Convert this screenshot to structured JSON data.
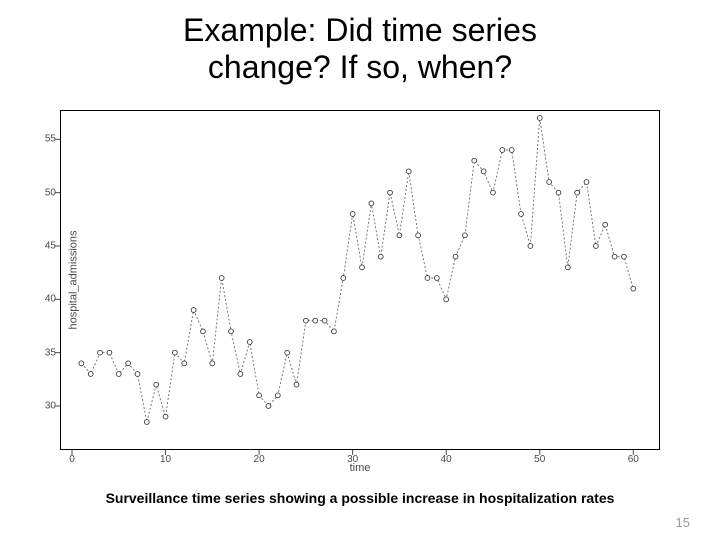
{
  "title_line1": "Example:  Did time series",
  "title_line2": "change? If so, when?",
  "caption": "Surveillance time series showing a possible increase in hospitalization rates",
  "page_number": "15",
  "chart": {
    "type": "line",
    "xlabel": "time",
    "ylabel": "hospital_admissions",
    "xlim": [
      0,
      62
    ],
    "ylim": [
      27,
      57
    ],
    "xticks": [
      0,
      10,
      20,
      30,
      40,
      50,
      60
    ],
    "yticks": [
      30,
      35,
      40,
      45,
      50,
      55
    ],
    "line_color": "#6a6a6a",
    "marker_stroke": "#3a3a3a",
    "marker_fill": "#ffffff",
    "marker_radius": 2.4,
    "line_width": 0.9,
    "line_dash": "2,2",
    "border_color": "#000000",
    "background_color": "#ffffff",
    "tick_color": "#4a4a4a",
    "x": [
      1,
      2,
      3,
      4,
      5,
      6,
      7,
      8,
      9,
      10,
      11,
      12,
      13,
      14,
      15,
      16,
      17,
      18,
      19,
      20,
      21,
      22,
      23,
      24,
      25,
      26,
      27,
      28,
      29,
      30,
      31,
      32,
      33,
      34,
      35,
      36,
      37,
      38,
      39,
      40,
      41,
      42,
      43,
      44,
      45,
      46,
      47,
      48,
      49,
      50,
      51,
      52,
      53,
      54,
      55,
      56,
      57,
      58,
      59,
      60
    ],
    "y": [
      34,
      33,
      35,
      35,
      33,
      34,
      33,
      28.5,
      32,
      29,
      35,
      34,
      39,
      37,
      34,
      42,
      37,
      33,
      36,
      31,
      30,
      31,
      35,
      32,
      38,
      38,
      38,
      37,
      42,
      48,
      43,
      49,
      44,
      50,
      46,
      52,
      46,
      42,
      42,
      40,
      44,
      46,
      53,
      52,
      50,
      54,
      54,
      48,
      45,
      57,
      51,
      50,
      43,
      50,
      51,
      45,
      47,
      44,
      44,
      41
    ]
  }
}
